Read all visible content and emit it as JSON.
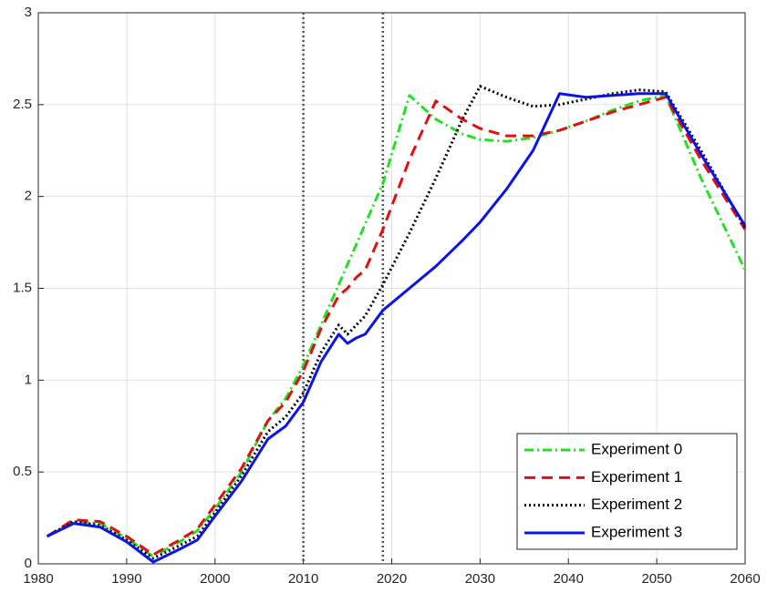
{
  "chart_data": {
    "type": "line",
    "x": [
      1981,
      1984,
      1987,
      1990,
      1993,
      1996,
      1998,
      2000,
      2003,
      2006,
      2008,
      2010,
      2012,
      2014,
      2015,
      2016,
      2017,
      2019,
      2022,
      2025,
      2028,
      2030,
      2033,
      2036,
      2039,
      2042,
      2045,
      2048,
      2051,
      2055,
      2060
    ],
    "series": [
      {
        "name": "Experiment 0",
        "color": "#22e022",
        "line_style": "dashdot",
        "values": [
          0.15,
          0.23,
          0.22,
          0.14,
          0.04,
          0.12,
          0.18,
          0.3,
          0.5,
          0.78,
          0.9,
          1.08,
          1.3,
          1.52,
          1.63,
          1.74,
          1.85,
          2.07,
          2.55,
          2.42,
          2.34,
          2.31,
          2.3,
          2.32,
          2.36,
          2.41,
          2.47,
          2.52,
          2.55,
          2.1,
          1.6
        ]
      },
      {
        "name": "Experiment 1",
        "color": "#e01010",
        "line_style": "dashed",
        "values": [
          0.15,
          0.24,
          0.23,
          0.15,
          0.05,
          0.13,
          0.19,
          0.32,
          0.52,
          0.78,
          0.88,
          1.05,
          1.28,
          1.46,
          1.5,
          1.56,
          1.6,
          1.82,
          2.2,
          2.52,
          2.42,
          2.37,
          2.33,
          2.33,
          2.36,
          2.41,
          2.46,
          2.5,
          2.54,
          2.2,
          1.82
        ]
      },
      {
        "name": "Experiment 2",
        "color": "#000000",
        "line_style": "dotted",
        "values": [
          0.15,
          0.23,
          0.21,
          0.13,
          0.03,
          0.1,
          0.15,
          0.28,
          0.48,
          0.72,
          0.8,
          0.93,
          1.15,
          1.3,
          1.25,
          1.3,
          1.35,
          1.52,
          1.8,
          2.1,
          2.42,
          2.6,
          2.54,
          2.49,
          2.5,
          2.53,
          2.56,
          2.58,
          2.57,
          2.25,
          1.83
        ]
      },
      {
        "name": "Experiment 3",
        "color": "#0a14e6",
        "line_style": "solid",
        "values": [
          0.15,
          0.22,
          0.2,
          0.12,
          0.01,
          0.08,
          0.13,
          0.26,
          0.45,
          0.68,
          0.75,
          0.88,
          1.1,
          1.25,
          1.2,
          1.23,
          1.25,
          1.38,
          1.5,
          1.62,
          1.76,
          1.86,
          2.04,
          2.25,
          2.56,
          2.54,
          2.55,
          2.56,
          2.56,
          2.23,
          1.84
        ]
      }
    ],
    "vlines": [
      2010,
      2019
    ],
    "xlim": [
      1980,
      2060
    ],
    "xticks": [
      1980,
      1990,
      2000,
      2010,
      2020,
      2030,
      2040,
      2050,
      2060
    ],
    "ylim": [
      0,
      3
    ],
    "yticks": [
      0,
      0.5,
      1,
      1.5,
      2,
      2.5,
      3
    ],
    "grid": true,
    "legend": "lower right"
  }
}
